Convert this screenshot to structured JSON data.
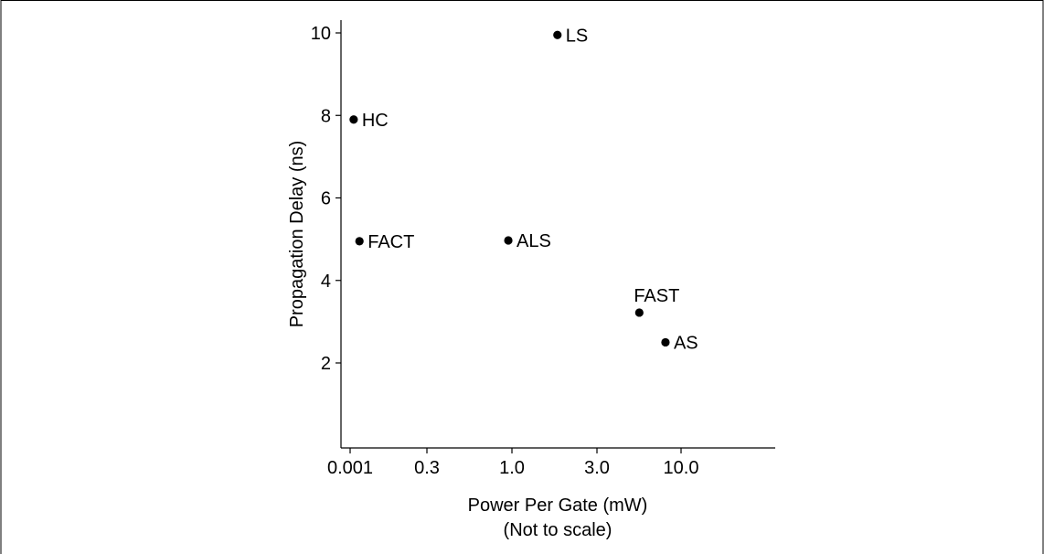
{
  "chart_data": {
    "type": "scatter",
    "xlabel": "Power Per Gate (mW)",
    "xlabel_note": "(Not to scale)",
    "ylabel": "Propagation Delay (ns)",
    "x_ticks": [
      "0.001",
      "0.3",
      "1.0",
      "3.0",
      "10.0"
    ],
    "y_ticks": [
      2,
      4,
      6,
      8,
      10
    ],
    "ylim": [
      0,
      10.3
    ],
    "points": [
      {
        "label": "LS",
        "x": 1.8,
        "y": 9.95
      },
      {
        "label": "HC",
        "x": 0.0013,
        "y": 7.9
      },
      {
        "label": "FACT",
        "x": 0.002,
        "y": 4.95
      },
      {
        "label": "ALS",
        "x": 0.95,
        "y": 4.97
      },
      {
        "label": "FAST",
        "x": 5.5,
        "y": 3.22
      },
      {
        "label": "AS",
        "x": 8.0,
        "y": 2.5
      }
    ]
  }
}
